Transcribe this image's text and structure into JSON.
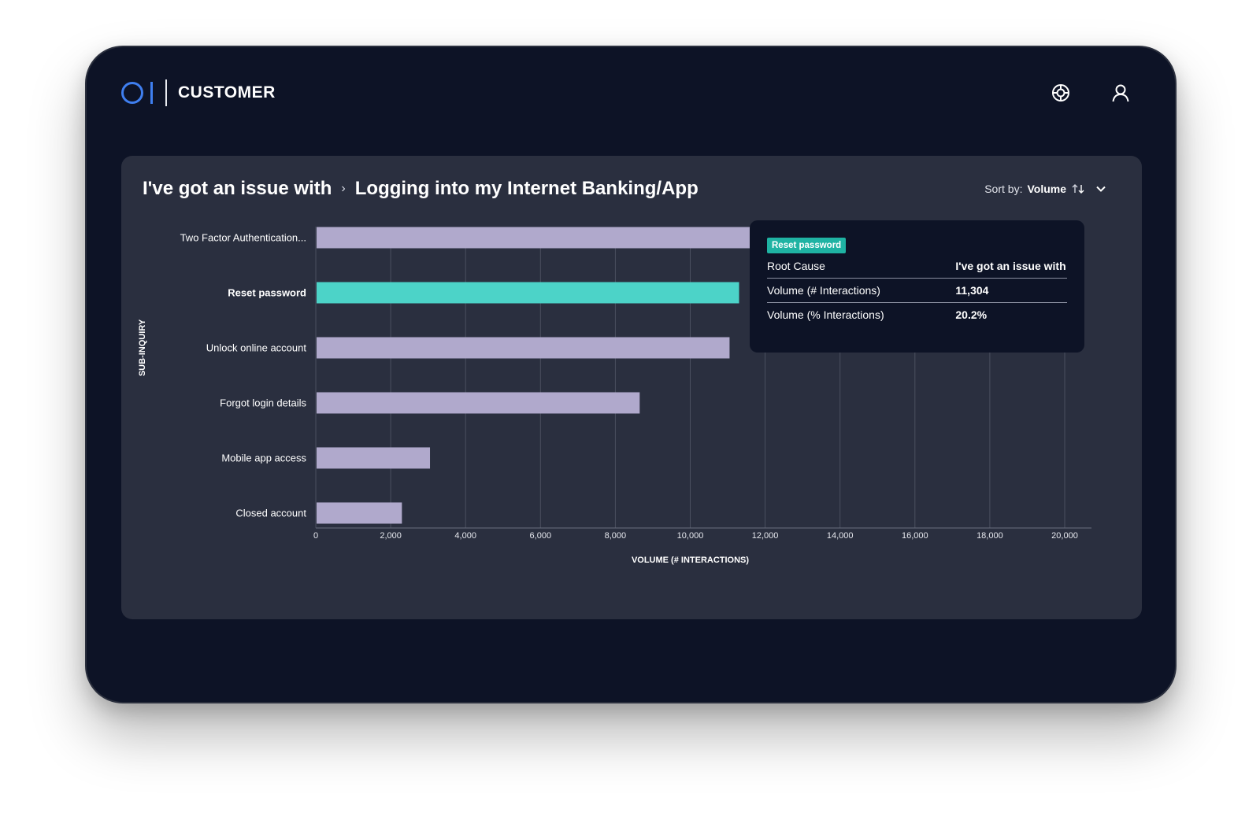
{
  "app": {
    "logo_text": "OI",
    "title": "CUSTOMER"
  },
  "header": {
    "icons": [
      "help-wheel-icon",
      "user-icon"
    ]
  },
  "breadcrumb": {
    "parent": "I've got an issue with",
    "separator": "›",
    "current": "Logging into my Internet Banking/App"
  },
  "sort": {
    "label": "Sort by:",
    "value": "Volume",
    "icons": [
      "sort-arrows-icon",
      "chevron-down-icon"
    ]
  },
  "colors": {
    "bar": "#b0a9cc",
    "highlight": "#4cd3c8",
    "badge": "#1fb3a3",
    "background": "#0d1326",
    "panel": "#2a2f3f"
  },
  "chart_data": {
    "type": "bar",
    "orientation": "horizontal",
    "categories": [
      "Two Factor Authentication...",
      "Reset password",
      "Unlock online account",
      "Forgot login details",
      "Mobile app access",
      "Closed account"
    ],
    "values": [
      12000,
      11304,
      11050,
      8650,
      3050,
      2300
    ],
    "highlighted_category": "Reset password",
    "xlabel": "VOLUME (# INTERACTIONS)",
    "ylabel": "SUB-INQUIRY",
    "xlim": [
      0,
      20000
    ],
    "xticks": [
      "0",
      "2,000",
      "4,000",
      "6,000",
      "8,000",
      "10,000",
      "12,000",
      "14,000",
      "16,000",
      "18,000",
      "20,000"
    ],
    "grid": true
  },
  "tooltip": {
    "badge": "Reset password",
    "rows": [
      {
        "key": "Root Cause",
        "value": "I've got an issue with"
      },
      {
        "key": "Volume (# Interactions)",
        "value": "11,304"
      },
      {
        "key": "Volume (% Interactions)",
        "value": "20.2%"
      }
    ]
  }
}
